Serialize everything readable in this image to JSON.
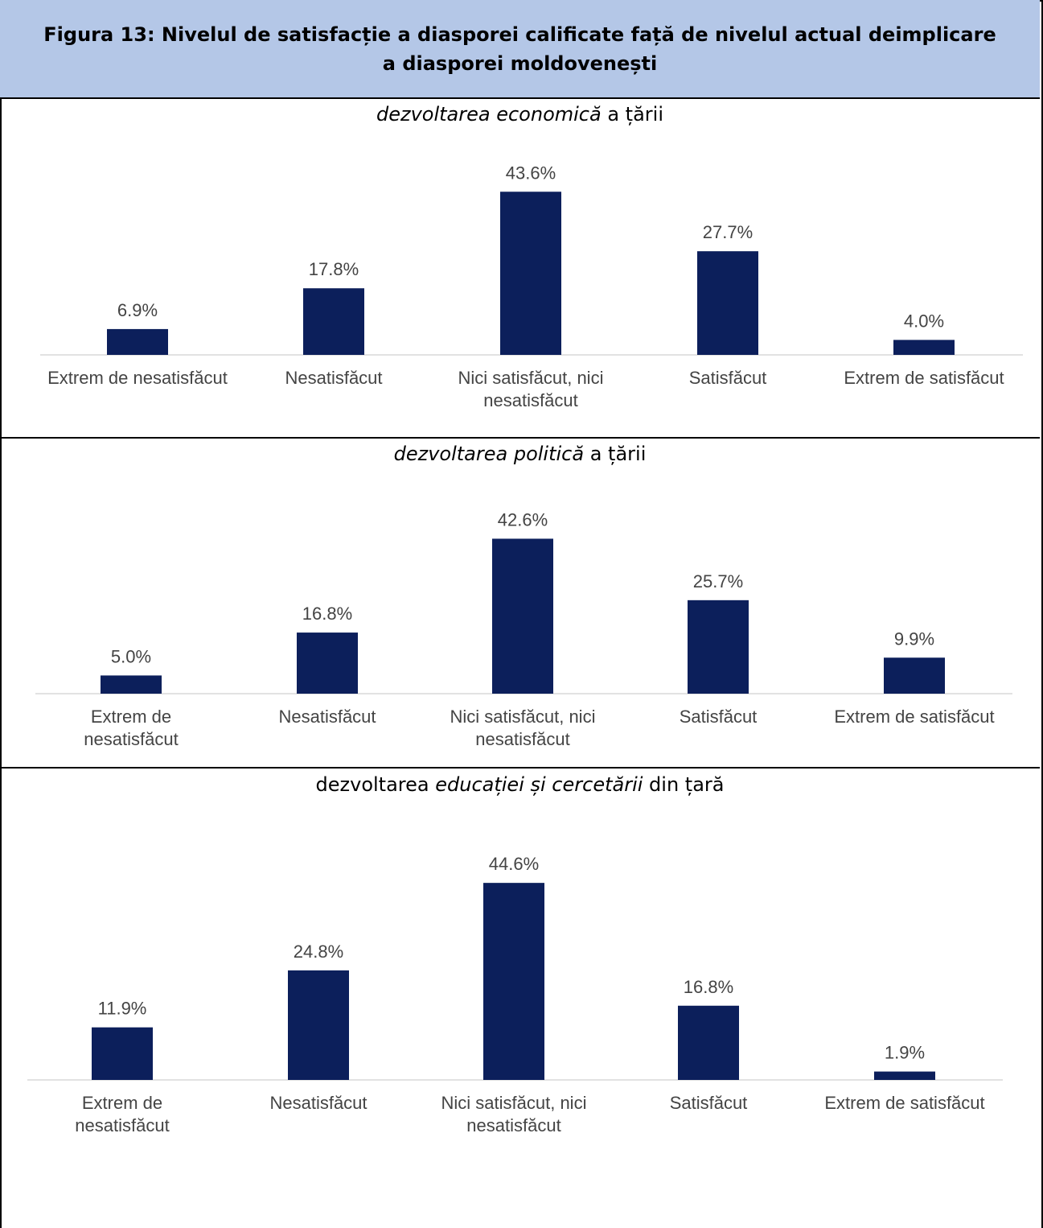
{
  "header": {
    "title": "Figura 13: Nivelul de satisfacție a diasporei calificate față de nivelul actual deimplicare a diasporei moldovenești"
  },
  "colors": {
    "bar": "#0c1f5b",
    "header_bg": "#b4c7e7",
    "axis": "#d9d9d9",
    "label": "#444444"
  },
  "panels": [
    {
      "title_parts": [
        {
          "text": "dezvoltarea economică",
          "italic": true
        },
        {
          "text": " a țării",
          "italic": false
        }
      ]
    },
    {
      "title_parts": [
        {
          "text": "dezvoltarea politică",
          "italic": true
        },
        {
          "text": " a țării",
          "italic": false
        }
      ]
    },
    {
      "title_parts": [
        {
          "text": "dezvoltarea ",
          "italic": false
        },
        {
          "text": "educației și cercetării",
          "italic": true
        },
        {
          "text": " din țară",
          "italic": false
        }
      ]
    }
  ],
  "chart_data": [
    {
      "type": "bar",
      "title": "dezvoltarea economică a țării",
      "categories": [
        "Extrem de nesatisfăcut",
        "Nesatisfăcut",
        "Nici satisfăcut, nici nesatisfăcut",
        "Satisfăcut",
        "Extrem de satisfăcut"
      ],
      "category_lines": [
        [
          "Extrem de nesatisfăcut"
        ],
        [
          "Nesatisfăcut"
        ],
        [
          "Nici satisfăcut, nici",
          "nesatisfăcut"
        ],
        [
          "Satisfăcut"
        ],
        [
          "Extrem de satisfăcut"
        ]
      ],
      "values": [
        6.9,
        17.8,
        43.6,
        27.7,
        4.0
      ],
      "data_labels": [
        "6.9%",
        "17.8%",
        "43.6%",
        "27.7%",
        "4.0%"
      ],
      "ylim": [
        0,
        50
      ],
      "grid": false
    },
    {
      "type": "bar",
      "title": "dezvoltarea politică a țării",
      "categories": [
        "Extrem de nesatisfăcut",
        "Nesatisfăcut",
        "Nici satisfăcut, nici nesatisfăcut",
        "Satisfăcut",
        "Extrem de satisfăcut"
      ],
      "category_lines": [
        [
          "Extrem de",
          "nesatisfăcut"
        ],
        [
          "Nesatisfăcut"
        ],
        [
          "Nici satisfăcut, nici",
          "nesatisfăcut"
        ],
        [
          "Satisfăcut"
        ],
        [
          "Extrem de satisfăcut"
        ]
      ],
      "values": [
        5.0,
        16.8,
        42.6,
        25.7,
        9.9
      ],
      "data_labels": [
        "5.0%",
        "16.8%",
        "42.6%",
        "25.7%",
        "9.9%"
      ],
      "ylim": [
        0,
        50
      ],
      "grid": false
    },
    {
      "type": "bar",
      "title": "dezvoltarea educației și cercetării din țară",
      "categories": [
        "Extrem de nesatisfăcut",
        "Nesatisfăcut",
        "Nici satisfăcut, nici nesatisfăcut",
        "Satisfăcut",
        "Extrem de satisfăcut"
      ],
      "category_lines": [
        [
          "Extrem de",
          "nesatisfăcut"
        ],
        [
          "Nesatisfăcut"
        ],
        [
          "Nici satisfăcut, nici",
          "nesatisfăcut"
        ],
        [
          "Satisfăcut"
        ],
        [
          "Extrem de satisfăcut"
        ]
      ],
      "values": [
        11.9,
        24.8,
        44.6,
        16.8,
        1.9
      ],
      "data_labels": [
        "11.9%",
        "24.8%",
        "44.6%",
        "16.8%",
        "1.9%"
      ],
      "ylim": [
        0,
        50
      ],
      "grid": false
    }
  ]
}
